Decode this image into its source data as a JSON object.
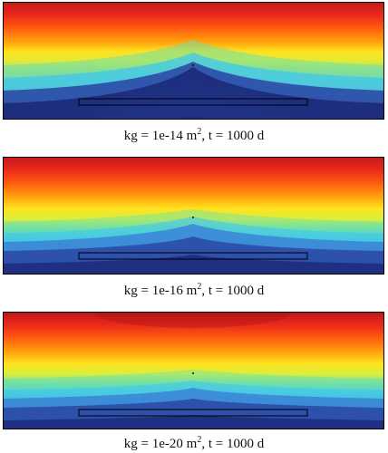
{
  "panels": [
    {
      "caption": {
        "prefix": "kg = 1e-14 m",
        "sup": "2",
        "suffix": ", t = 1000 d"
      }
    },
    {
      "caption": {
        "prefix": "kg = 1e-16 m",
        "sup": "2",
        "suffix": ", t = 1000 d"
      }
    },
    {
      "caption": {
        "prefix": "kg = 1e-20 m",
        "sup": "2",
        "suffix": ", t = 1000 d"
      }
    }
  ],
  "colors": {
    "colormap": [
      "#1d2a7a",
      "#2c4aa6",
      "#3a7fd6",
      "#3fc7ee",
      "#6fe0a8",
      "#d9ef3e",
      "#ffe21f",
      "#ffa20c",
      "#ff5a10",
      "#e8251c",
      "#c41b1a"
    ],
    "outline": "#000000"
  }
}
